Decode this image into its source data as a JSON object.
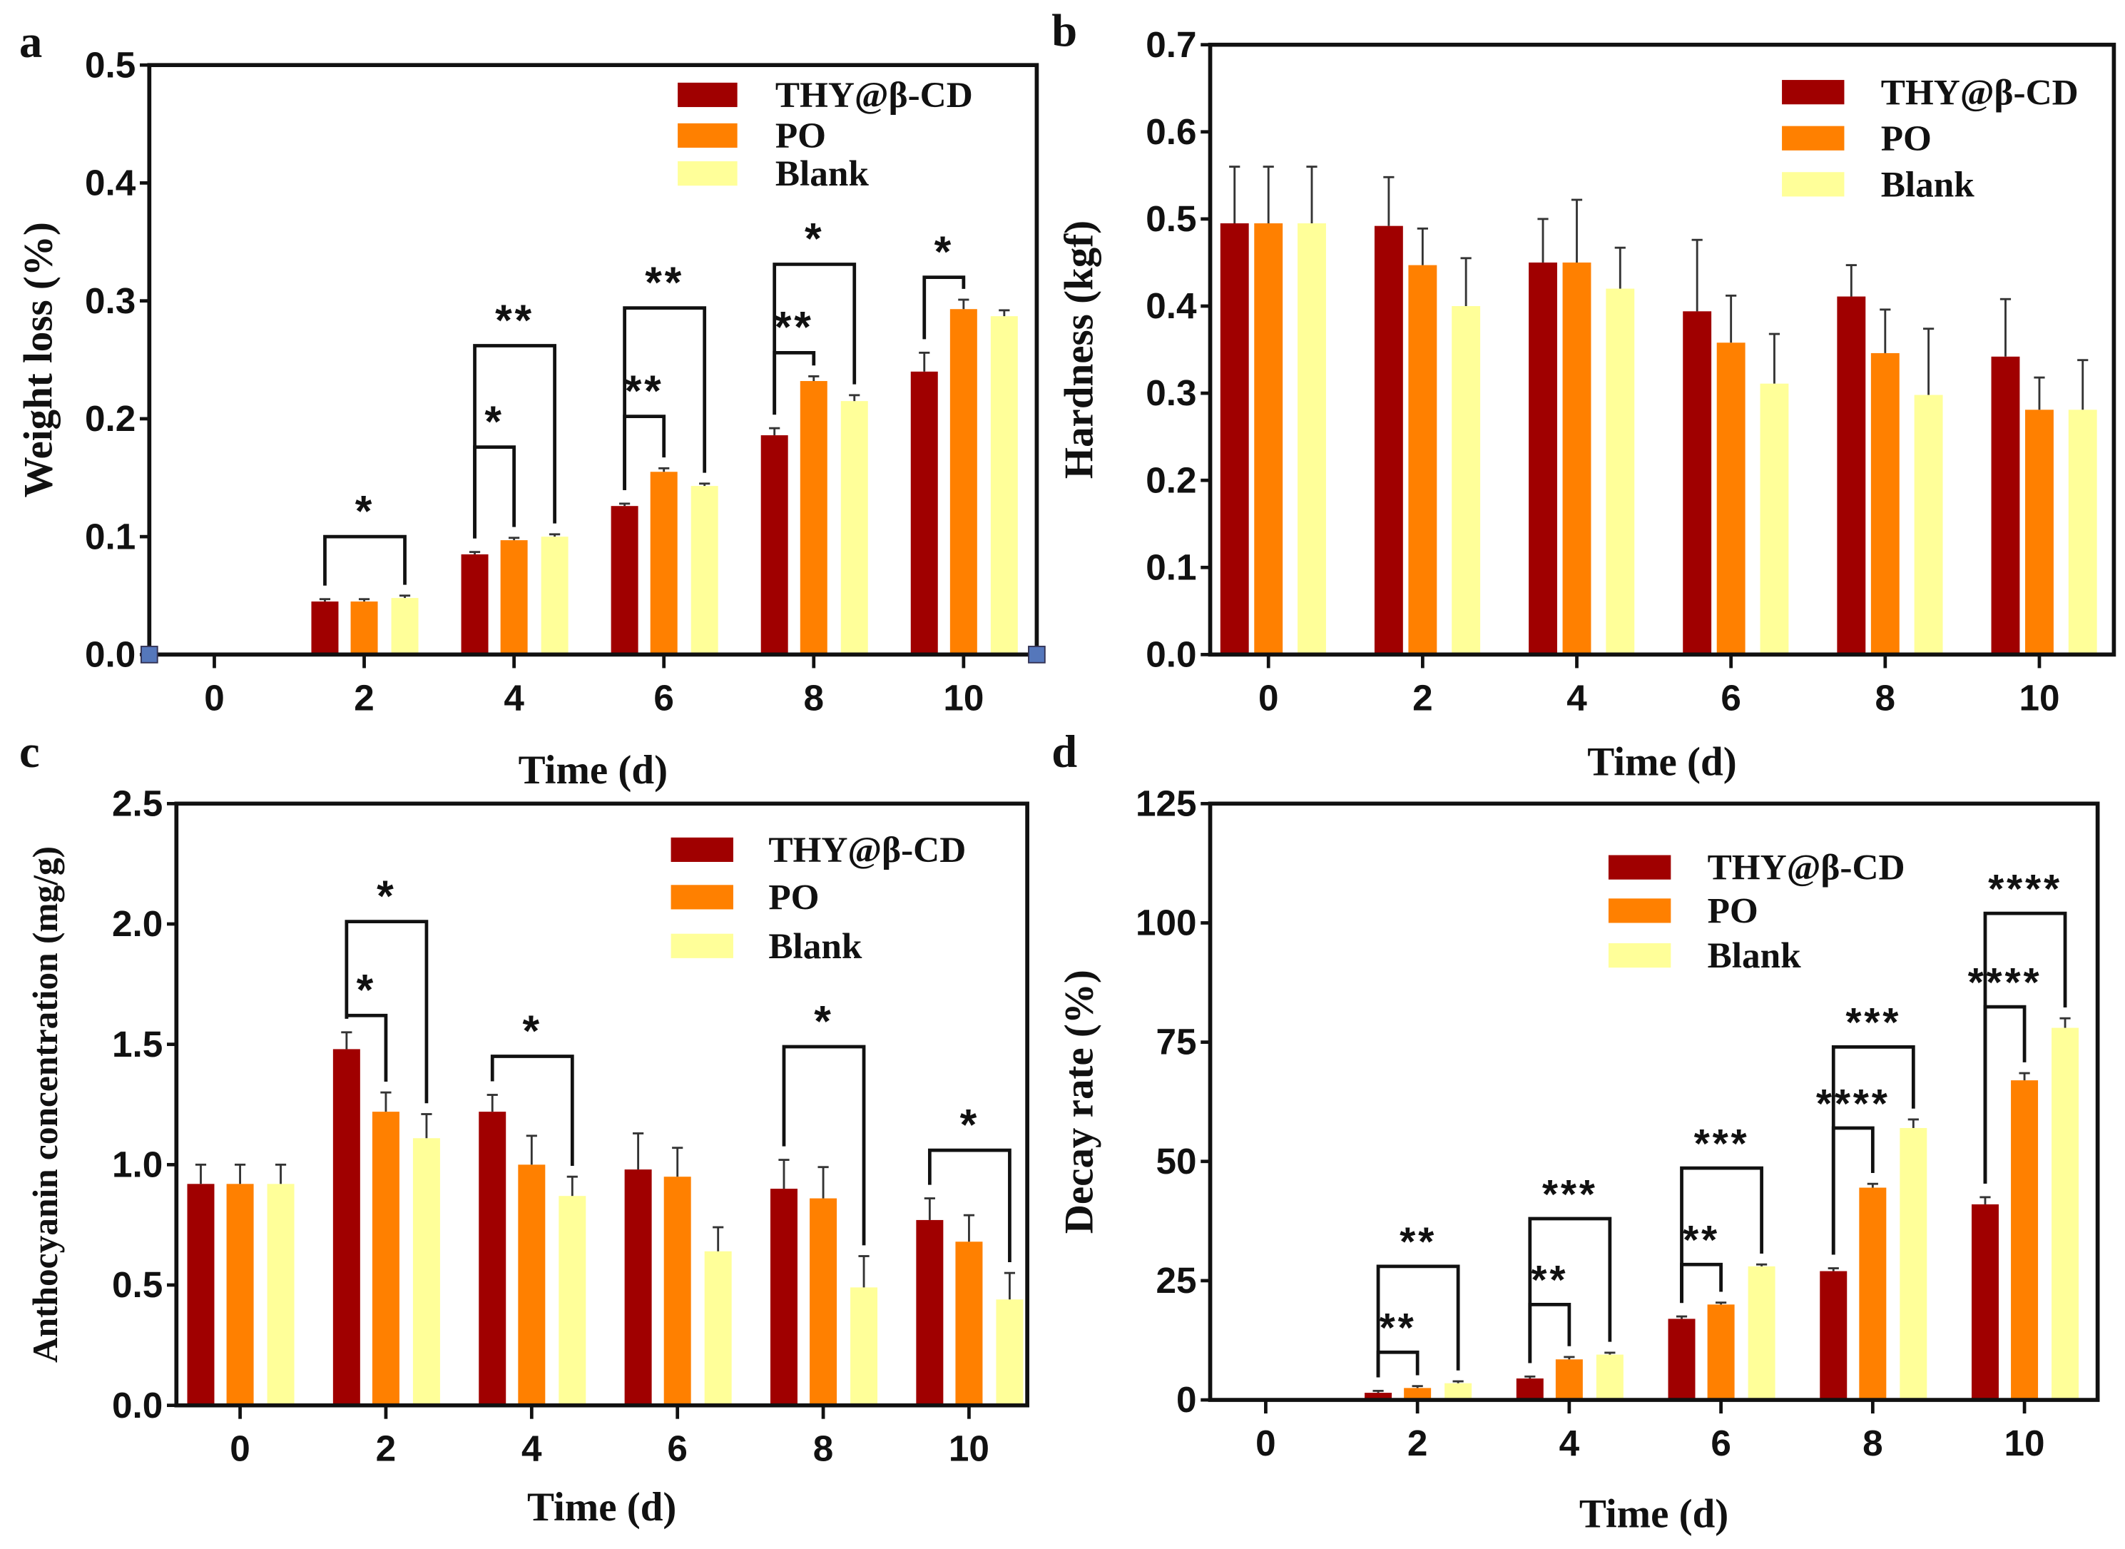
{
  "colors": {
    "THY@β-CD": "#a00000",
    "PO": "#ff8000",
    "Blank": "#ffff99",
    "axis": "#111111",
    "axis_marker": "#5577bb"
  },
  "chart_data": [
    {
      "panel": "a",
      "type": "bar",
      "xlabel": "Time (d)",
      "ylabel": "Weight loss (%)",
      "categories": [
        "0",
        "2",
        "4",
        "6",
        "8",
        "10"
      ],
      "ylim": [
        0,
        0.5
      ],
      "yticks": [
        "0.0",
        "0.1",
        "0.2",
        "0.3",
        "0.4",
        "0.5"
      ],
      "ytick_values": [
        0,
        0.1,
        0.2,
        0.3,
        0.4,
        0.5
      ],
      "legend": [
        "THY@β-CD",
        "PO",
        "Blank"
      ],
      "legend_position": "top-right",
      "series": [
        {
          "name": "THY@β-CD",
          "values": [
            0,
            0.045,
            0.085,
            0.126,
            0.186,
            0.24
          ],
          "errors": [
            0,
            0.002,
            0.002,
            0.002,
            0.006,
            0.016
          ]
        },
        {
          "name": "PO",
          "values": [
            0,
            0.045,
            0.097,
            0.155,
            0.232,
            0.293
          ],
          "errors": [
            0,
            0.002,
            0.002,
            0.003,
            0.004,
            0.008
          ]
        },
        {
          "name": "Blank",
          "values": [
            0,
            0.048,
            0.1,
            0.143,
            0.215,
            0.287
          ],
          "errors": [
            0,
            0.002,
            0.002,
            0.002,
            0.005,
            0.005
          ]
        }
      ],
      "significance": [
        {
          "category": 1,
          "from": 0,
          "to": 2,
          "level": 0.1,
          "label": "*"
        },
        {
          "category": 2,
          "from": 0,
          "to": 1,
          "level": 0.176,
          "label": "*"
        },
        {
          "category": 2,
          "from": 0,
          "to": 2,
          "level": 0.262,
          "label": "**"
        },
        {
          "category": 3,
          "from": 0,
          "to": 1,
          "level": 0.202,
          "label": "**"
        },
        {
          "category": 3,
          "from": 0,
          "to": 2,
          "level": 0.294,
          "label": "**"
        },
        {
          "category": 4,
          "from": 0,
          "to": 1,
          "level": 0.256,
          "label": "**"
        },
        {
          "category": 4,
          "from": 0,
          "to": 2,
          "level": 0.331,
          "label": "*"
        },
        {
          "category": 5,
          "from": 0,
          "to": 1,
          "level": 0.32,
          "label": "*"
        }
      ]
    },
    {
      "panel": "b",
      "type": "bar",
      "xlabel": "Time (d)",
      "ylabel": "Hardness (kgf)",
      "categories": [
        "0",
        "2",
        "4",
        "6",
        "8",
        "10"
      ],
      "ylim": [
        0,
        0.7
      ],
      "yticks": [
        "0.0",
        "0.1",
        "0.2",
        "0.3",
        "0.4",
        "0.5",
        "0.6",
        "0.7"
      ],
      "ytick_values": [
        0,
        0.1,
        0.2,
        0.3,
        0.4,
        0.5,
        0.6,
        0.7
      ],
      "legend": [
        "THY@β-CD",
        "PO",
        "Blank"
      ],
      "legend_position": "top-right",
      "series": [
        {
          "name": "THY@β-CD",
          "values": [
            0.495,
            0.492,
            0.45,
            0.394,
            0.411,
            0.342
          ],
          "errors": [
            0.065,
            0.056,
            0.05,
            0.082,
            0.036,
            0.066
          ]
        },
        {
          "name": "PO",
          "values": [
            0.495,
            0.447,
            0.45,
            0.358,
            0.346,
            0.281
          ],
          "errors": [
            0.065,
            0.042,
            0.072,
            0.054,
            0.05,
            0.037
          ]
        },
        {
          "name": "Blank",
          "values": [
            0.495,
            0.4,
            0.42,
            0.311,
            0.298,
            0.281
          ],
          "errors": [
            0.065,
            0.055,
            0.047,
            0.057,
            0.076,
            0.057
          ]
        }
      ],
      "significance": []
    },
    {
      "panel": "c",
      "type": "bar",
      "xlabel": "Time (d)",
      "ylabel": "Anthocyanin concentration (mg/g)",
      "categories": [
        "0",
        "2",
        "4",
        "6",
        "8",
        "10"
      ],
      "ylim": [
        0,
        2.5
      ],
      "yticks": [
        "0.0",
        "0.5",
        "1.0",
        "1.5",
        "2.0",
        "2.5"
      ],
      "ytick_values": [
        0,
        0.5,
        1.0,
        1.5,
        2.0,
        2.5
      ],
      "legend": [
        "THY@β-CD",
        "PO",
        "Blank"
      ],
      "legend_position": "top-right",
      "series": [
        {
          "name": "THY@β-CD",
          "values": [
            0.92,
            1.48,
            1.22,
            0.98,
            0.9,
            0.77
          ],
          "errors": [
            0.08,
            0.07,
            0.07,
            0.15,
            0.12,
            0.09
          ]
        },
        {
          "name": "PO",
          "values": [
            0.92,
            1.22,
            1.0,
            0.95,
            0.86,
            0.68
          ],
          "errors": [
            0.08,
            0.08,
            0.12,
            0.12,
            0.13,
            0.11
          ]
        },
        {
          "name": "Blank",
          "values": [
            0.92,
            1.11,
            0.87,
            0.64,
            0.49,
            0.44
          ],
          "errors": [
            0.08,
            0.1,
            0.08,
            0.1,
            0.13,
            0.11
          ]
        }
      ],
      "significance": [
        {
          "category": 1,
          "from": 0,
          "to": 1,
          "level": 1.62,
          "label": "*"
        },
        {
          "category": 1,
          "from": 0,
          "to": 2,
          "level": 2.01,
          "label": "*"
        },
        {
          "category": 2,
          "from": 0,
          "to": 2,
          "level": 1.45,
          "label": "*"
        },
        {
          "category": 4,
          "from": 0,
          "to": 2,
          "level": 1.49,
          "label": "*"
        },
        {
          "category": 5,
          "from": 0,
          "to": 2,
          "level": 1.06,
          "label": "*"
        }
      ]
    },
    {
      "panel": "d",
      "type": "bar",
      "xlabel": "Time (d)",
      "ylabel": "Decay rate (%)",
      "categories": [
        "0",
        "2",
        "4",
        "6",
        "8",
        "10"
      ],
      "ylim": [
        0,
        125
      ],
      "yticks": [
        "0",
        "25",
        "50",
        "75",
        "100",
        "125"
      ],
      "ytick_values": [
        0,
        25,
        50,
        75,
        100,
        125
      ],
      "legend": [
        "THY@β-CD",
        "PO",
        "Blank"
      ],
      "legend_position": "top-right",
      "series": [
        {
          "name": "THY@β-CD",
          "values": [
            0,
            1.5,
            4.5,
            17,
            27,
            41
          ],
          "errors": [
            0,
            0.4,
            0.4,
            0.5,
            0.6,
            1.5
          ]
        },
        {
          "name": "PO",
          "values": [
            0,
            2.5,
            8.5,
            20,
            44.5,
            67
          ],
          "errors": [
            0,
            0.4,
            0.5,
            0.4,
            0.8,
            1.5
          ]
        },
        {
          "name": "Blank",
          "values": [
            0,
            3.5,
            9.5,
            28,
            57,
            78
          ],
          "errors": [
            0,
            0.4,
            0.4,
            0.4,
            1.8,
            2.0
          ]
        }
      ],
      "significance": [
        {
          "category": 1,
          "from": 0,
          "to": 1,
          "level": 10,
          "label": "**"
        },
        {
          "category": 1,
          "from": 0,
          "to": 2,
          "level": 28,
          "label": "**"
        },
        {
          "category": 2,
          "from": 0,
          "to": 1,
          "level": 20,
          "label": "**"
        },
        {
          "category": 2,
          "from": 0,
          "to": 2,
          "level": 38,
          "label": "***"
        },
        {
          "category": 3,
          "from": 0,
          "to": 1,
          "level": 28.4,
          "label": "**"
        },
        {
          "category": 3,
          "from": 0,
          "to": 2,
          "level": 48.6,
          "label": "***"
        },
        {
          "category": 4,
          "from": 0,
          "to": 1,
          "level": 57,
          "label": "****"
        },
        {
          "category": 4,
          "from": 0,
          "to": 2,
          "level": 74,
          "label": "***"
        },
        {
          "category": 5,
          "from": 0,
          "to": 1,
          "level": 82.4,
          "label": "****"
        },
        {
          "category": 5,
          "from": 0,
          "to": 2,
          "level": 102,
          "label": "****"
        }
      ]
    }
  ]
}
